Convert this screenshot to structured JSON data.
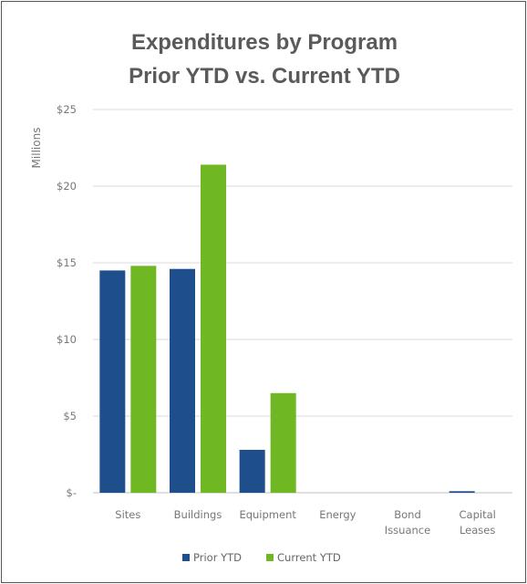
{
  "chart_data": {
    "type": "bar",
    "title": [
      "Expenditures by Program",
      "Prior YTD vs. Current YTD"
    ],
    "ylabel": "Millions",
    "xlabel": "",
    "ylim": [
      0,
      25
    ],
    "yticks": [
      0,
      5,
      10,
      15,
      20,
      25
    ],
    "ytick_labels": [
      "$-",
      "$5",
      "$10",
      "$15",
      "$20",
      "$25"
    ],
    "categories": [
      [
        "Sites"
      ],
      [
        "Buildings"
      ],
      [
        "Equipment"
      ],
      [
        "Energy"
      ],
      [
        "Bond",
        "Issuance"
      ],
      [
        "Capital",
        "Leases"
      ]
    ],
    "series": [
      {
        "name": "Prior YTD",
        "color": "#1f4e8c",
        "values": [
          14.5,
          14.6,
          2.8,
          0,
          0,
          0.1
        ]
      },
      {
        "name": "Current YTD",
        "color": "#6fb824",
        "values": [
          14.8,
          21.4,
          6.5,
          0,
          0,
          0
        ]
      }
    ],
    "grid": true,
    "legend": "bottom"
  }
}
